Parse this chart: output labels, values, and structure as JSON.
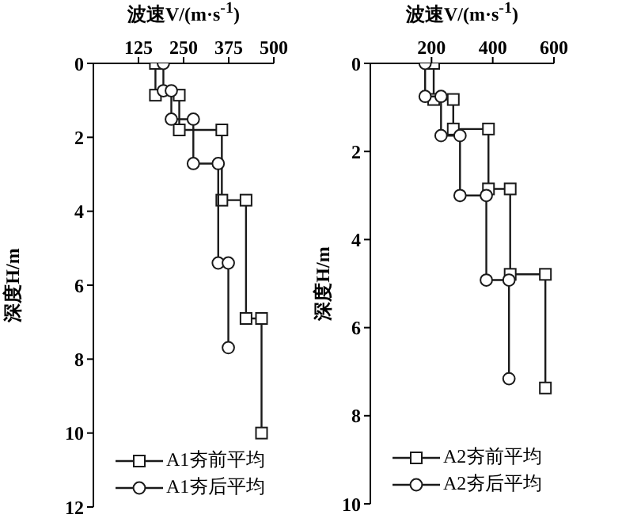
{
  "chart_data": [
    {
      "type": "line",
      "xlabel": "波速V/(m·s$^{-1}$)",
      "ylabel": "深度H/m",
      "xlim": [
        0,
        500
      ],
      "xticks": [
        125,
        250,
        375,
        500
      ],
      "ylim": [
        12,
        0
      ],
      "yticks": [
        0,
        2,
        4,
        6,
        8,
        10,
        12
      ],
      "grid": false,
      "legend": "bottom left",
      "line_style": "solid",
      "series": [
        {
          "name": "A1夯前平均",
          "color": "#1a1a1a",
          "marker": "square",
          "x": [
            172,
            172,
            238,
            238,
            356,
            356,
            423,
            423,
            466,
            466
          ],
          "values": [
            0,
            0.86,
            0.86,
            1.8,
            1.8,
            3.7,
            3.7,
            6.9,
            6.9,
            10
          ]
        },
        {
          "name": "A1夯后平均",
          "color": "#1a1a1a",
          "marker": "circle",
          "x": [
            194,
            194,
            216,
            216,
            277,
            277,
            346,
            346,
            374,
            374
          ],
          "values": [
            0,
            0.74,
            0.74,
            1.51,
            1.51,
            2.71,
            2.71,
            5.4,
            5.4,
            7.69
          ]
        }
      ]
    },
    {
      "type": "line",
      "xlabel": "波速V/(m·s$^{-1}$)",
      "ylabel": "深度H/m",
      "xlim": [
        0,
        600
      ],
      "xticks": [
        200,
        400,
        600
      ],
      "ylim": [
        10,
        0
      ],
      "yticks": [
        0,
        2,
        4,
        6,
        8,
        10
      ],
      "grid": false,
      "legend": "bottom left",
      "line_style": "solid",
      "series": [
        {
          "name": "A2夯前平均",
          "color": "#1a1a1a",
          "marker": "square",
          "x": [
            207,
            207,
            271,
            271,
            386,
            386,
            457,
            457,
            572,
            572
          ],
          "values": [
            0,
            0.82,
            0.82,
            1.49,
            1.49,
            2.85,
            2.85,
            4.79,
            4.79,
            7.37
          ]
        },
        {
          "name": "A2夯后平均",
          "color": "#1a1a1a",
          "marker": "circle",
          "x": [
            179,
            179,
            231,
            231,
            293,
            293,
            379,
            379,
            453,
            453
          ],
          "values": [
            0,
            0.75,
            0.75,
            1.64,
            1.64,
            3.0,
            3.0,
            4.92,
            4.92,
            7.16
          ]
        }
      ]
    }
  ]
}
